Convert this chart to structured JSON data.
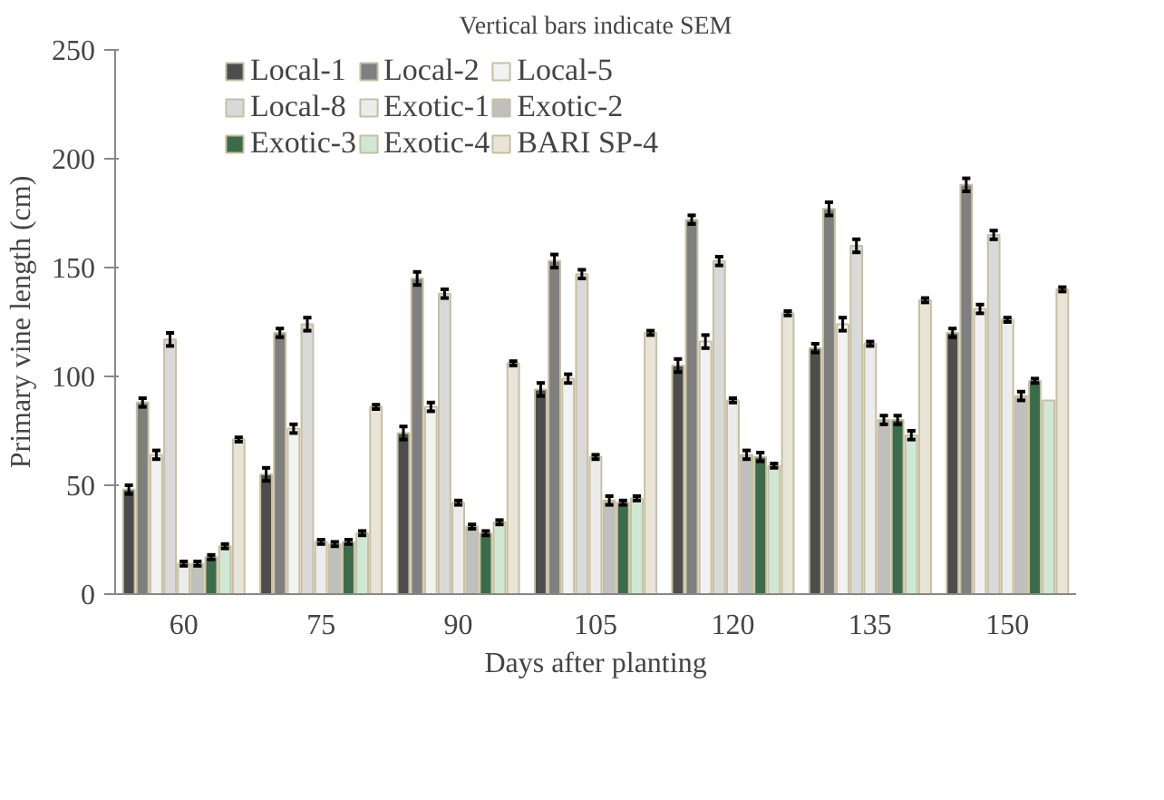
{
  "chart_data": {
    "type": "bar",
    "xlabel": "Days after planting",
    "ylabel": "Primary vine length (cm)",
    "annotations": [
      "Vertical bars indicate SEM"
    ],
    "categories": [
      "60",
      "75",
      "90",
      "105",
      "120",
      "135",
      "150"
    ],
    "ylim": [
      0,
      250
    ],
    "yticks": [
      0,
      50,
      100,
      150,
      200,
      250
    ],
    "grid": false,
    "legend": "top",
    "series": [
      {
        "name": "Local-1",
        "color": "#4d4d4d",
        "values": [
          48,
          55,
          74,
          94,
          105,
          113,
          120
        ],
        "errors": [
          2,
          3,
          3,
          3,
          3,
          2,
          2
        ]
      },
      {
        "name": "Local-2",
        "color": "#7f7f7f",
        "values": [
          88,
          120,
          145,
          153,
          172,
          177,
          188
        ],
        "errors": [
          2,
          2,
          3,
          3,
          2,
          3,
          3
        ]
      },
      {
        "name": "Local-5",
        "color": "#f2f2f2",
        "values": [
          64,
          76,
          86,
          99,
          116,
          124,
          131
        ],
        "errors": [
          2,
          2,
          2,
          2,
          3,
          3,
          2
        ]
      },
      {
        "name": "Local-8",
        "color": "#d9d9d9",
        "values": [
          117,
          124,
          138,
          147,
          153,
          160,
          165
        ],
        "errors": [
          3,
          3,
          2,
          2,
          2,
          3,
          2
        ]
      },
      {
        "name": "Exotic-1",
        "color": "#ececec",
        "values": [
          14,
          24,
          42,
          63,
          89,
          115,
          126
        ],
        "errors": [
          1,
          1,
          1,
          1,
          1,
          1,
          1
        ]
      },
      {
        "name": "Exotic-2",
        "color": "#bfbfbf",
        "values": [
          14,
          23,
          31,
          43,
          64,
          80,
          91
        ],
        "errors": [
          1,
          1,
          1,
          2,
          2,
          2,
          2
        ]
      },
      {
        "name": "Exotic-3",
        "color": "#3a6b4a",
        "values": [
          17,
          24,
          28,
          42,
          63,
          80,
          98
        ],
        "errors": [
          1,
          1,
          1,
          1,
          2,
          2,
          1
        ]
      },
      {
        "name": "Exotic-4",
        "color": "#cfe8d6",
        "values": [
          22,
          28,
          33,
          44,
          59,
          73,
          89
        ],
        "errors": [
          1,
          1,
          1,
          1,
          1,
          2,
          null
        ]
      },
      {
        "name": "BARI SP-4",
        "color": "#e8e4d8",
        "values": [
          71,
          86,
          106,
          120,
          129,
          135,
          140
        ],
        "errors": [
          1,
          1,
          1,
          1,
          1,
          1,
          1
        ]
      }
    ]
  }
}
